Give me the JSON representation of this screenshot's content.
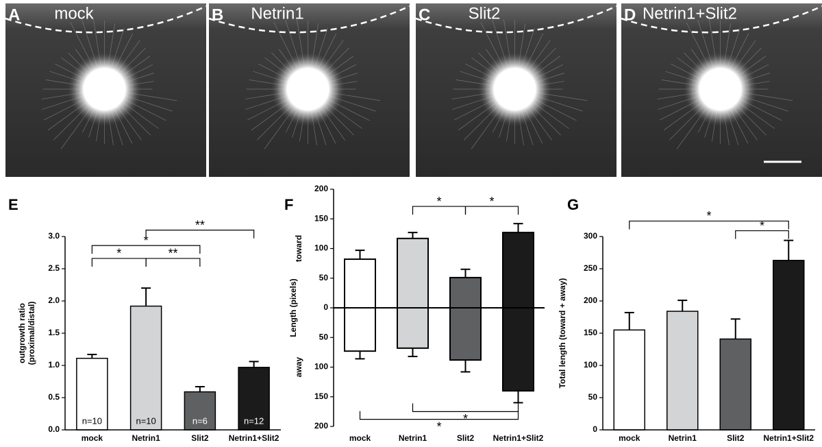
{
  "image_panels": [
    {
      "letter": "A",
      "label": "mock"
    },
    {
      "letter": "B",
      "label": "Netrin1"
    },
    {
      "letter": "C",
      "label": "Slit2"
    },
    {
      "letter": "D",
      "label": "Netrin1+Slit2"
    }
  ],
  "chart_data": [
    {
      "type": "bar",
      "panel": "E",
      "ylabel": [
        "outgrowth ratio",
        "(proximal/distal)"
      ],
      "categories": [
        "mock",
        "Netrin1",
        "Slit2",
        "Netrin1+Slit2"
      ],
      "values": [
        1.11,
        1.92,
        0.59,
        0.97
      ],
      "errors": [
        0.06,
        0.28,
        0.08,
        0.09
      ],
      "colors": [
        "#ffffff",
        "#d3d4d5",
        "#5f6062",
        "#1b1b1b"
      ],
      "n_labels": [
        "n=10",
        "n=10",
        "n=6",
        "n=12"
      ],
      "ylim": [
        0,
        3
      ],
      "yticks": [
        {
          "value": 0,
          "label": "0.0"
        },
        {
          "value": 0.5,
          "label": "0.5"
        },
        {
          "value": 1,
          "label": "1.0"
        },
        {
          "value": 1.5,
          "label": "1.5"
        },
        {
          "value": 2,
          "label": "2.0"
        },
        {
          "value": 2.5,
          "label": "2.5"
        },
        {
          "value": 3,
          "label": "3.0"
        }
      ],
      "brackets": [
        {
          "from": 0,
          "to": 2,
          "y": 2.86,
          "label": "*"
        },
        {
          "from": 0,
          "to": 1,
          "y": 2.66,
          "label": "*"
        },
        {
          "from": 1,
          "to": 2,
          "y": 2.66,
          "label": "**"
        },
        {
          "from": 1,
          "to": 3,
          "y": 3.1,
          "label": "**"
        }
      ]
    },
    {
      "type": "diverging-bar",
      "panel": "F",
      "ylabel": "Length (pixels)",
      "categories": [
        "mock",
        "Netrin1",
        "Slit2",
        "Netrin1+Slit2"
      ],
      "series": [
        {
          "name": "toward",
          "values": [
            82,
            117,
            51,
            127
          ],
          "errors": [
            15,
            10,
            14,
            15
          ]
        },
        {
          "name": "away",
          "values": [
            -73,
            -68,
            -88,
            -140
          ],
          "errors": [
            13,
            14,
            20,
            20
          ]
        }
      ],
      "colors": [
        "#ffffff",
        "#d3d4d5",
        "#5f6062",
        "#1b1b1b"
      ],
      "ylim": [
        -200,
        200
      ],
      "yticks": [
        {
          "value": -200,
          "label": "200"
        },
        {
          "value": -150,
          "label": "150"
        },
        {
          "value": -100,
          "label": "100"
        },
        {
          "value": -50,
          "label": "50"
        },
        0,
        50,
        100,
        150,
        200
      ],
      "brackets": [
        {
          "from": 1,
          "to": 2,
          "y": 171,
          "label": "*"
        },
        {
          "from": 2,
          "to": 3,
          "y": 171,
          "label": "*"
        },
        {
          "from": 1,
          "to": 3,
          "y": -175,
          "label": "*"
        },
        {
          "from": 0,
          "to": 3,
          "y": -188,
          "label": "*"
        }
      ]
    },
    {
      "type": "bar",
      "panel": "G",
      "ylabel": "Total length (toward + away)",
      "categories": [
        "mock",
        "Netrin1",
        "Slit2",
        "Netrin1+Slit2"
      ],
      "values": [
        155,
        184,
        141,
        263
      ],
      "errors": [
        27,
        17,
        31,
        31
      ],
      "colors": [
        "#ffffff",
        "#d3d4d5",
        "#5f6062",
        "#1b1b1b"
      ],
      "ylim": [
        0,
        300
      ],
      "yticks": [
        0,
        50,
        100,
        150,
        200,
        250,
        300
      ],
      "brackets": [
        {
          "from": 0,
          "to": 3,
          "y": 324,
          "label": "*"
        },
        {
          "from": 2,
          "to": 3,
          "y": 309,
          "label": "*"
        }
      ]
    }
  ]
}
